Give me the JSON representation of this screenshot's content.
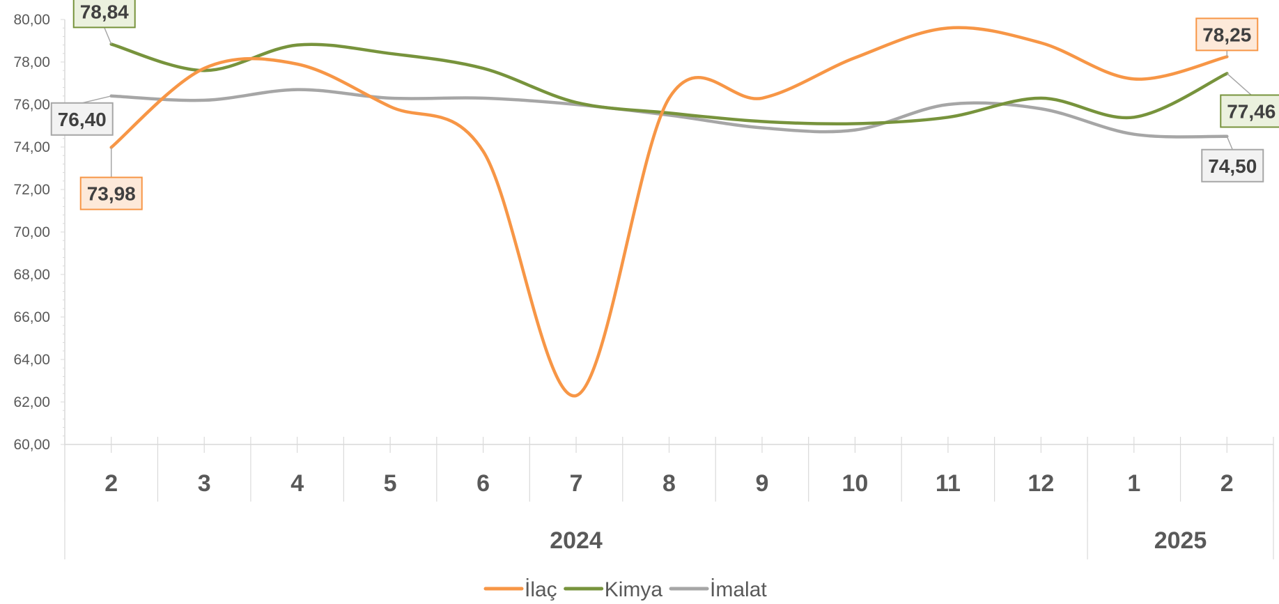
{
  "chart_data": {
    "type": "line",
    "x": [
      "2",
      "3",
      "4",
      "5",
      "6",
      "7",
      "8",
      "9",
      "10",
      "11",
      "12",
      "1",
      "2"
    ],
    "year_groups": [
      {
        "label": "2024",
        "start": 0,
        "end": 10
      },
      {
        "label": "2025",
        "start": 11,
        "end": 12
      }
    ],
    "ylim": [
      60,
      80
    ],
    "ytick_step": 2,
    "yticks": [
      "60,00",
      "62,00",
      "64,00",
      "66,00",
      "68,00",
      "70,00",
      "72,00",
      "74,00",
      "76,00",
      "78,00",
      "80,00"
    ],
    "grid": false,
    "legend_position": "bottom",
    "series": [
      {
        "name": "İlaç",
        "color": "#F79646",
        "values": [
          73.98,
          77.7,
          77.9,
          75.9,
          73.8,
          62.3,
          76.3,
          76.3,
          78.2,
          79.6,
          78.9,
          77.2,
          78.25
        ],
        "first_label": "73,98",
        "last_label": "78,25",
        "label_fill": "#FDE9D9"
      },
      {
        "name": "Kimya",
        "color": "#77933C",
        "values": [
          78.84,
          77.6,
          78.8,
          78.4,
          77.7,
          76.1,
          75.6,
          75.2,
          75.1,
          75.4,
          76.3,
          75.4,
          77.46
        ],
        "first_label": "78,84",
        "last_label": "77,46",
        "label_fill": "#EBF1DE"
      },
      {
        "name": "İmalat",
        "color": "#A6A6A6",
        "values": [
          76.4,
          76.2,
          76.7,
          76.3,
          76.3,
          76.0,
          75.5,
          74.9,
          74.8,
          76.0,
          75.8,
          74.6,
          74.5
        ],
        "first_label": "76,40",
        "last_label": "74,50",
        "label_fill": "#F2F2F2"
      }
    ]
  }
}
